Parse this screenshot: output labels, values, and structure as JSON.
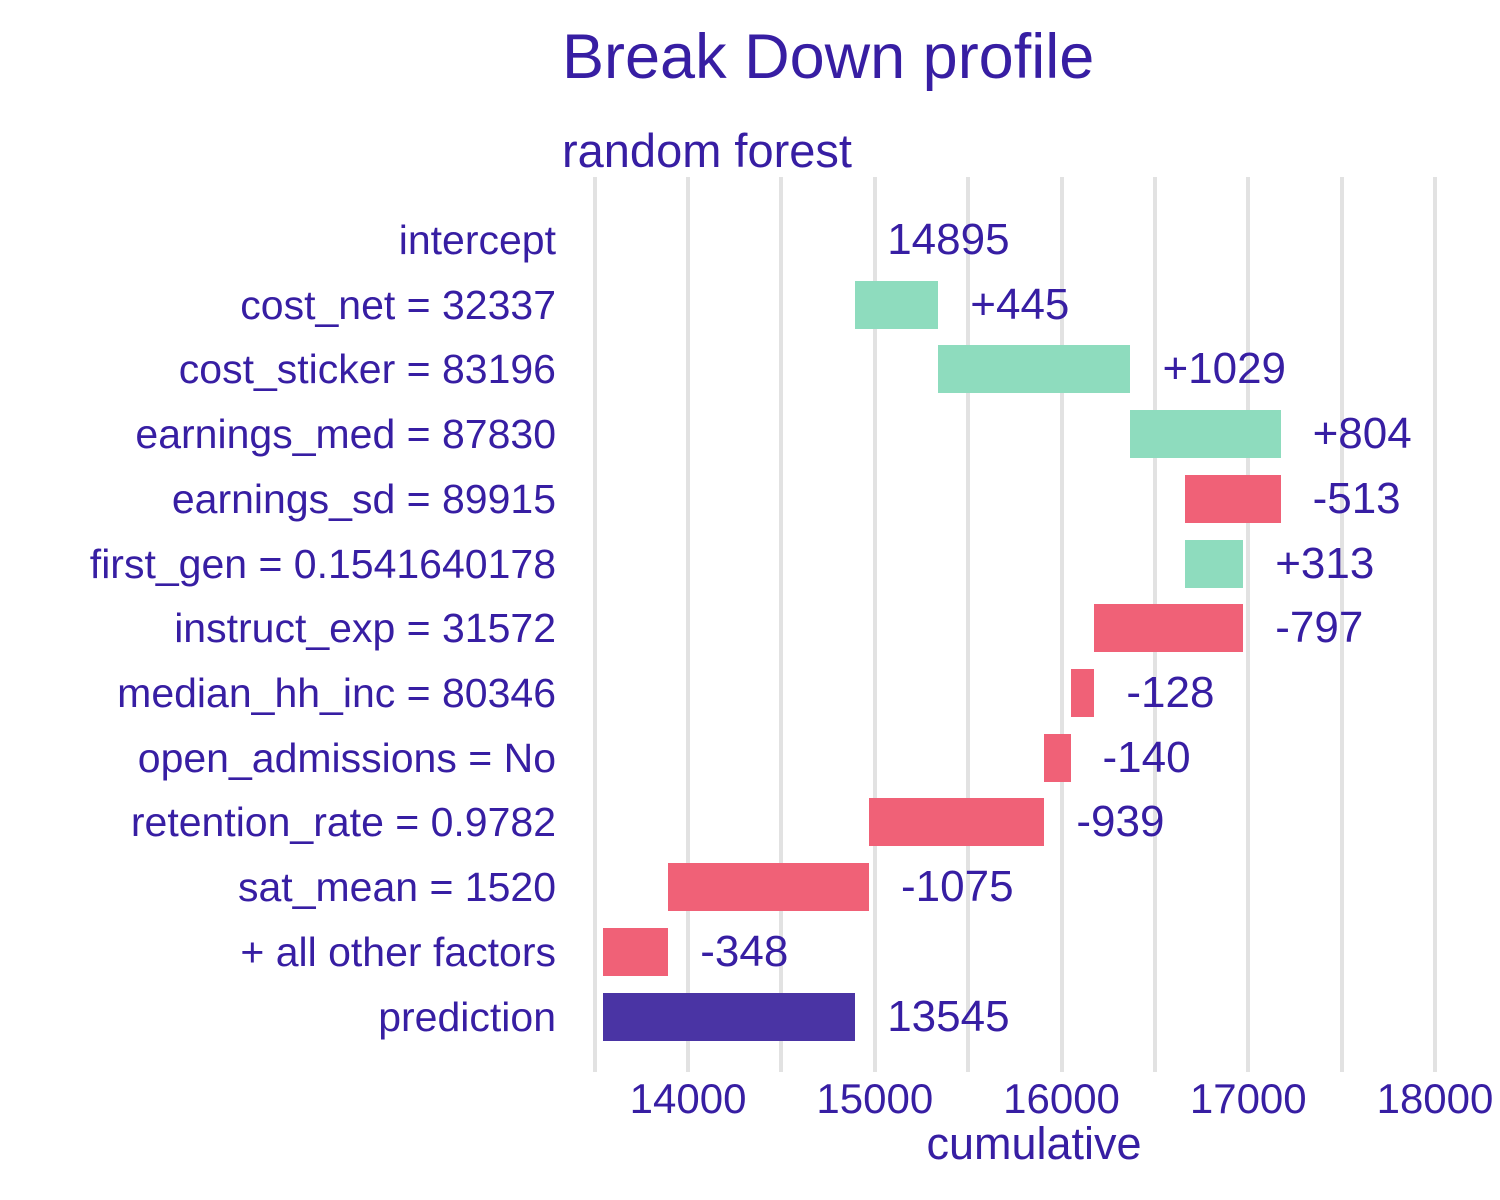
{
  "chart_data": {
    "type": "bar",
    "variant": "breakdown-waterfall",
    "orientation": "horizontal",
    "title": "Break Down profile",
    "subtitle": "random forest",
    "xlabel": "cumulative",
    "x_domain": [
      13448,
      18257
    ],
    "x_major_ticks": [
      "14000",
      "15000",
      "16000",
      "17000",
      "18000"
    ],
    "x_major_tick_values": [
      14000,
      15000,
      16000,
      17000,
      18000
    ],
    "x_gridline_values": [
      13500,
      14000,
      14500,
      15000,
      15500,
      16000,
      16500,
      17000,
      17500,
      18000
    ],
    "grid": "vertical-only",
    "legend_position": "none",
    "intercept": 14895,
    "prediction": 13545,
    "rows": [
      {
        "label": "intercept",
        "kind": "intercept",
        "contribution": 14895,
        "value_label": "14895",
        "start": 14895,
        "end": 14895
      },
      {
        "label": "cost_net = 32337",
        "kind": "positive",
        "contribution": 445,
        "value_label": "+445",
        "start": 14895,
        "end": 15340
      },
      {
        "label": "cost_sticker = 83196",
        "kind": "positive",
        "contribution": 1029,
        "value_label": "+1029",
        "start": 15340,
        "end": 16369
      },
      {
        "label": "earnings_med = 87830",
        "kind": "positive",
        "contribution": 804,
        "value_label": "+804",
        "start": 16369,
        "end": 17173
      },
      {
        "label": "earnings_sd = 89915",
        "kind": "negative",
        "contribution": -513,
        "value_label": "-513",
        "start": 17173,
        "end": 16660
      },
      {
        "label": "first_gen = 0.1541640178",
        "kind": "positive",
        "contribution": 313,
        "value_label": "+313",
        "start": 16660,
        "end": 16973
      },
      {
        "label": "instruct_exp = 31572",
        "kind": "negative",
        "contribution": -797,
        "value_label": "-797",
        "start": 16973,
        "end": 16176
      },
      {
        "label": "median_hh_inc = 80346",
        "kind": "negative",
        "contribution": -128,
        "value_label": "-128",
        "start": 16176,
        "end": 16048
      },
      {
        "label": "open_admissions = No",
        "kind": "negative",
        "contribution": -140,
        "value_label": "-140",
        "start": 16048,
        "end": 15908
      },
      {
        "label": "retention_rate = 0.9782",
        "kind": "negative",
        "contribution": -939,
        "value_label": "-939",
        "start": 15908,
        "end": 14969
      },
      {
        "label": "sat_mean = 1520",
        "kind": "negative",
        "contribution": -1075,
        "value_label": "-1075",
        "start": 14969,
        "end": 13894
      },
      {
        "label": "+ all other factors",
        "kind": "negative",
        "contribution": -348,
        "value_label": "-348",
        "start": 13894,
        "end": 13546
      },
      {
        "label": "prediction",
        "kind": "prediction",
        "contribution": 13545,
        "value_label": "13545",
        "start": 13545,
        "end": 14895
      }
    ],
    "colors": {
      "positive": "#8edcbe",
      "negative": "#f06177",
      "prediction": "#4a34a4",
      "text": "#371ea3",
      "gridline": "#e2e2e2"
    }
  }
}
